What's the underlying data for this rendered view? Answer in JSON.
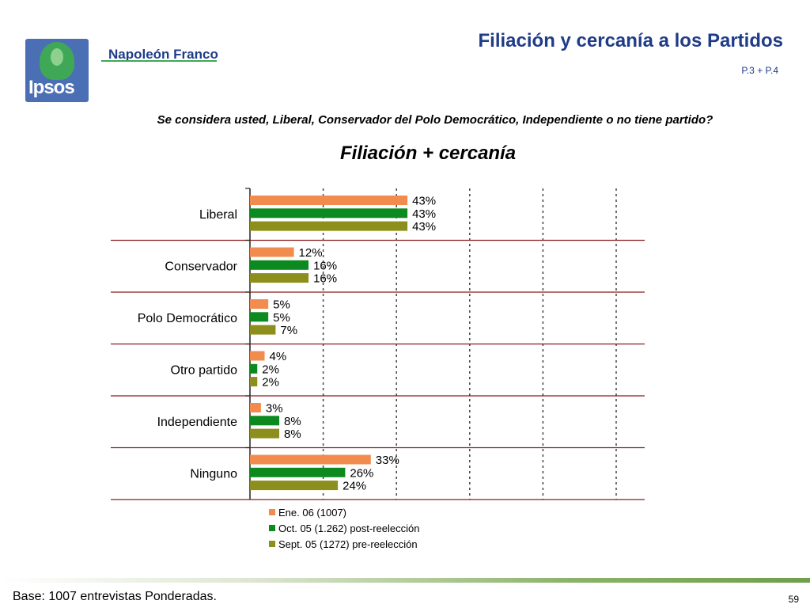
{
  "header": {
    "logo_text": "Ipsos",
    "brand_text": "Napoleón Franco",
    "title": "Filiación y cercanía a los Partidos",
    "ref": "P.3 + P.4"
  },
  "question": "Se considera usted, Liberal, Conservador del Polo Democrático, Independiente o no tiene partido?",
  "footer": {
    "base": "Base: 1007 entrevistas Ponderadas.",
    "page_number": "59"
  },
  "colors": {
    "series": [
      "#f28c4e",
      "#0c8a1f",
      "#8c8f1c"
    ],
    "separator": "#8b1a1a",
    "title_blue": "#1f3c88"
  },
  "chart_data": {
    "type": "bar",
    "orientation": "horizontal",
    "title": "Filiación + cercanía",
    "categories": [
      "Liberal",
      "Conservador",
      "Polo Democrático",
      "Otro partido",
      "Independiente",
      "Ninguno"
    ],
    "series": [
      {
        "name": "Ene. 06 (1007)",
        "values": [
          43,
          12,
          5,
          4,
          3,
          33
        ]
      },
      {
        "name": "Oct. 05 (1.262) post-reelección",
        "values": [
          43,
          16,
          5,
          2,
          8,
          26
        ]
      },
      {
        "name": "Sept. 05 (1272) pre-reelección",
        "values": [
          43,
          16,
          7,
          2,
          8,
          24
        ]
      }
    ],
    "value_suffix": "%",
    "xlim": [
      0,
      100
    ],
    "grid": "vertical dotted",
    "legend_position": "bottom"
  }
}
